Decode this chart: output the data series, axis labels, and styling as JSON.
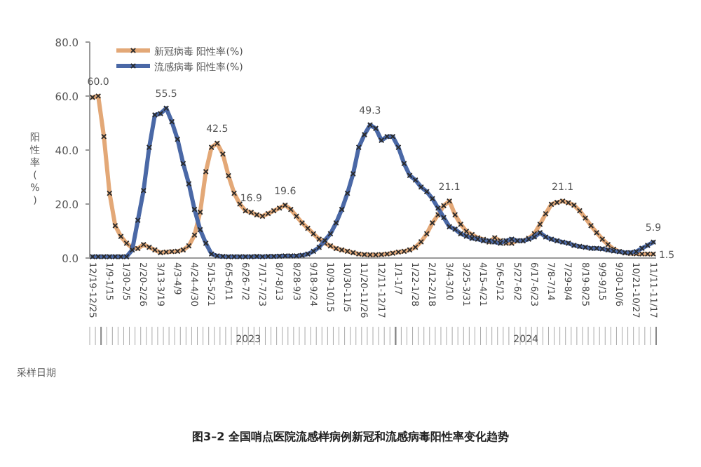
{
  "chart_data": {
    "type": "line",
    "ylabel": "阳性率 (%)",
    "categories": [
      "12/19-12/25",
      null,
      null,
      "1/9-1/15",
      null,
      null,
      "1/30-2/5",
      null,
      null,
      "2/20-2/26",
      null,
      null,
      "3/13-3/19",
      null,
      null,
      "4/3-4/9",
      null,
      null,
      "4/24-4/30",
      null,
      null,
      "5/15-5/21",
      null,
      null,
      "6/5-6/11",
      null,
      null,
      "6/26-7/2",
      null,
      null,
      "7/17-7/23",
      null,
      null,
      "8/7-8/13",
      null,
      null,
      "8/28-9/3",
      null,
      null,
      "9/18-9/24",
      null,
      null,
      "10/9-10/15",
      null,
      null,
      "10/30-11/5",
      null,
      null,
      "11/20-11/26",
      null,
      null,
      "12/11-12/17",
      null,
      null,
      "1/1-1/7",
      null,
      null,
      "1/22-1/28",
      null,
      null,
      "2/12-2/18",
      null,
      null,
      "3/4-3/10",
      null,
      null,
      "3/25-3/31",
      null,
      null,
      "4/15-4/21",
      null,
      null,
      "5/6-5/12",
      null,
      null,
      "5/27-6/2",
      null,
      null,
      "6/17-6/23",
      null,
      null,
      "7/8-7/14",
      null,
      null,
      "7/29-8/4",
      null,
      null,
      "8/19-8/25",
      null,
      null,
      "9/9-9/15",
      null,
      null,
      "9/30-10/6",
      null,
      null,
      "10/21-10/27",
      null,
      null,
      "11/11-11/17"
    ],
    "series": [
      {
        "name": "新冠病毒 阳性率(%)",
        "color": "#e3a877",
        "values": [
          59.5,
          60.0,
          45,
          24,
          12,
          8,
          5.5,
          3.8,
          3.5,
          5,
          4,
          3,
          2,
          2.2,
          2.4,
          2.5,
          3,
          4.5,
          8.5,
          17,
          32,
          41,
          42.5,
          38.5,
          30.5,
          24,
          20,
          17.5,
          16.9,
          16,
          15.5,
          16.5,
          17.5,
          18.5,
          19.6,
          18,
          15.5,
          13,
          11,
          9,
          7,
          5.5,
          4.5,
          3.5,
          3,
          2.5,
          2,
          1.5,
          1.3,
          1.2,
          1.2,
          1.3,
          1.5,
          1.8,
          2.2,
          2.5,
          3,
          4,
          6,
          9,
          13,
          16,
          19.4,
          21.1,
          16,
          12.5,
          9.9,
          8.7,
          7.5,
          6.9,
          5.9,
          7.5,
          6.4,
          5.5,
          5.5,
          6.4,
          6.4,
          7.3,
          9,
          12.5,
          16.4,
          19.9,
          20.6,
          21.1,
          20.5,
          19.6,
          17.5,
          14.8,
          12,
          9.4,
          7,
          5,
          3.3,
          2.4,
          1.9,
          1.7,
          1.6,
          1.5,
          1.5,
          1.5
        ],
        "value_labels": [
          null,
          "60.0",
          null,
          null,
          null,
          null,
          null,
          null,
          null,
          null,
          null,
          null,
          null,
          null,
          null,
          null,
          null,
          null,
          null,
          null,
          null,
          null,
          "42.5",
          null,
          null,
          null,
          null,
          null,
          "16.9",
          null,
          null,
          null,
          null,
          null,
          "19.6",
          null,
          null,
          null,
          null,
          null,
          null,
          null,
          null,
          null,
          null,
          null,
          null,
          null,
          null,
          null,
          null,
          null,
          null,
          null,
          null,
          null,
          null,
          null,
          null,
          null,
          null,
          null,
          null,
          "21.1",
          null,
          null,
          null,
          null,
          null,
          null,
          null,
          null,
          null,
          null,
          null,
          null,
          null,
          null,
          null,
          null,
          null,
          null,
          null,
          "21.1",
          null,
          null,
          null,
          null,
          null,
          null,
          null,
          null,
          null,
          null,
          null,
          null,
          null,
          null,
          null,
          "1.5"
        ]
      },
      {
        "name": "流感病毒 阳性率(%)",
        "color": "#4a68a6",
        "values": [
          0.5,
          0.5,
          0.5,
          0.5,
          0.5,
          0.5,
          0.5,
          3,
          14,
          25,
          41,
          53,
          53.5,
          55.5,
          50.5,
          44,
          35,
          27.5,
          18,
          10.5,
          5.5,
          1.5,
          0.8,
          0.6,
          0.5,
          0.5,
          0.5,
          0.5,
          0.5,
          0.6,
          0.5,
          0.6,
          0.6,
          0.7,
          0.8,
          0.8,
          0.8,
          1,
          1.5,
          2.5,
          4,
          6.5,
          9,
          13,
          18,
          24,
          31.2,
          41,
          45.7,
          49.3,
          48,
          43.6,
          45,
          45,
          41,
          35,
          30.6,
          28.9,
          26.3,
          24.6,
          22,
          18.5,
          15,
          11.6,
          10.7,
          9,
          8.1,
          7.3,
          7,
          6.4,
          6.4,
          5.9,
          5.5,
          6.4,
          7,
          6.4,
          6.4,
          7,
          7.8,
          9.4,
          7.8,
          7,
          6.4,
          5.9,
          5.5,
          4.7,
          4.3,
          4,
          3.6,
          3.6,
          3.4,
          3,
          2.6,
          2.4,
          2,
          2,
          2.4,
          3.6,
          4.7,
          5.9
        ],
        "value_labels": [
          null,
          null,
          null,
          null,
          null,
          null,
          null,
          null,
          null,
          null,
          null,
          null,
          null,
          "55.5",
          null,
          null,
          null,
          null,
          null,
          null,
          null,
          null,
          null,
          null,
          null,
          null,
          null,
          null,
          null,
          null,
          null,
          null,
          null,
          null,
          null,
          null,
          null,
          null,
          null,
          null,
          null,
          null,
          null,
          null,
          null,
          null,
          null,
          null,
          null,
          "49.3",
          null,
          null,
          null,
          null,
          null,
          null,
          null,
          null,
          null,
          null,
          null,
          null,
          null,
          null,
          null,
          null,
          null,
          null,
          null,
          null,
          null,
          null,
          null,
          null,
          null,
          null,
          null,
          null,
          null,
          null,
          null,
          null,
          null,
          null,
          null,
          null,
          null,
          null,
          null,
          null,
          null,
          null,
          null,
          null,
          null,
          null,
          null,
          null,
          null,
          "5.9"
        ]
      }
    ],
    "ylim": [
      0,
      80
    ],
    "yticks": [
      {
        "value": 0,
        "label": "0.0"
      },
      {
        "value": 20,
        "label": "20.0"
      },
      {
        "value": 40,
        "label": "40.0"
      },
      {
        "value": 60,
        "label": "60.0"
      },
      {
        "value": 80,
        "label": "80.0"
      }
    ],
    "marker": "cross",
    "line_style": "solid",
    "grid": false,
    "legend": "top left",
    "annotations": [
      "2023",
      "2024",
      "采样日期",
      "图3–2  全国哨点医院流感样病例新冠和流感病毒阳性率变化趋势"
    ]
  }
}
